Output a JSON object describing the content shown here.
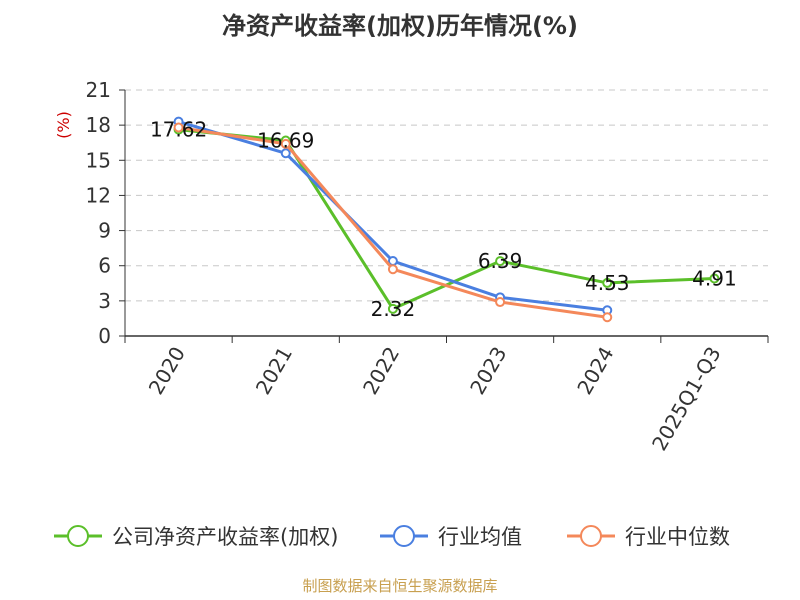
{
  "chart_data": {
    "type": "line",
    "title": "净资产收益率(加权)历年情况(%)",
    "ylabel": "(%)",
    "xlabel": "",
    "categories": [
      "2020",
      "2021",
      "2022",
      "2023",
      "2024",
      "2025Q1-Q3"
    ],
    "yticks": [
      0,
      3,
      6,
      9,
      12,
      15,
      18,
      21
    ],
    "ylim": [
      0,
      21
    ],
    "grid": true,
    "legend_position": "bottom",
    "series": [
      {
        "name": "公司净资产收益率(加权)",
        "color": "#5bbf2a",
        "values": [
          17.62,
          16.69,
          2.32,
          6.39,
          4.53,
          4.91
        ],
        "labels": [
          "17.62",
          "16.69",
          "2.32",
          "6.39",
          "4.53",
          "4.91"
        ]
      },
      {
        "name": "行业均值",
        "color": "#4a7fe0",
        "values": [
          18.3,
          15.6,
          6.4,
          3.3,
          2.2,
          null
        ]
      },
      {
        "name": "行业中位数",
        "color": "#f4885a",
        "values": [
          17.8,
          16.4,
          5.7,
          2.9,
          1.6,
          null
        ]
      }
    ]
  },
  "footer": {
    "source": "制图数据来自恒生聚源数据库"
  }
}
